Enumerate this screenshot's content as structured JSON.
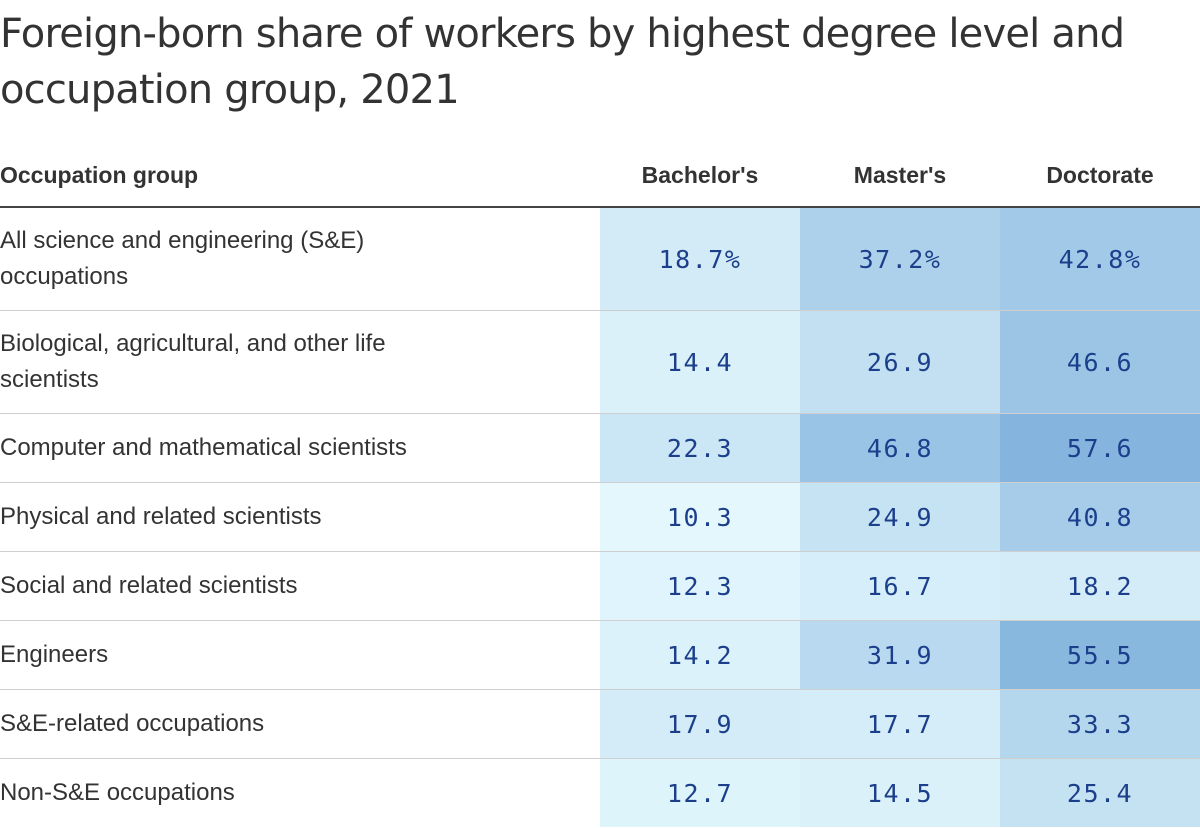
{
  "title": "Foreign-born share of workers by highest degree level and occupation group, 2021",
  "chart_data": {
    "type": "heatmap",
    "title": "Foreign-born share of workers by highest degree level and occupation group, 2021",
    "row_header": "Occupation group",
    "columns": [
      "Bachelor's",
      "Master's",
      "Doctorate"
    ],
    "rows": [
      {
        "occupation": "All science and engineering (S&E) occupations",
        "values": [
          18.7,
          37.2,
          42.8
        ],
        "labels": [
          "18.7%",
          "37.2%",
          "42.8%"
        ]
      },
      {
        "occupation": "Biological, agricultural, and other life scientists",
        "values": [
          14.4,
          26.9,
          46.6
        ],
        "labels": [
          "14.4",
          "26.9",
          "46.6"
        ]
      },
      {
        "occupation": "Computer and mathematical scientists",
        "values": [
          22.3,
          46.8,
          57.6
        ],
        "labels": [
          "22.3",
          "46.8",
          "57.6"
        ]
      },
      {
        "occupation": "Physical and related scientists",
        "values": [
          10.3,
          24.9,
          40.8
        ],
        "labels": [
          "10.3",
          "24.9",
          "40.8"
        ]
      },
      {
        "occupation": "Social and related scientists",
        "values": [
          12.3,
          16.7,
          18.2
        ],
        "labels": [
          "12.3",
          "16.7",
          "18.2"
        ]
      },
      {
        "occupation": "Engineers",
        "values": [
          14.2,
          31.9,
          55.5
        ],
        "labels": [
          "14.2",
          "31.9",
          "55.5"
        ]
      },
      {
        "occupation": "S&E-related occupations",
        "values": [
          17.9,
          17.7,
          33.3
        ],
        "labels": [
          "17.9",
          "17.7",
          "33.3"
        ]
      },
      {
        "occupation": "Non-S&E occupations",
        "values": [
          12.7,
          14.5,
          25.4
        ],
        "labels": [
          "12.7",
          "14.5",
          "25.4"
        ]
      }
    ],
    "color_scale": {
      "low": "#e3f7fd",
      "high": "#85b5de"
    }
  }
}
